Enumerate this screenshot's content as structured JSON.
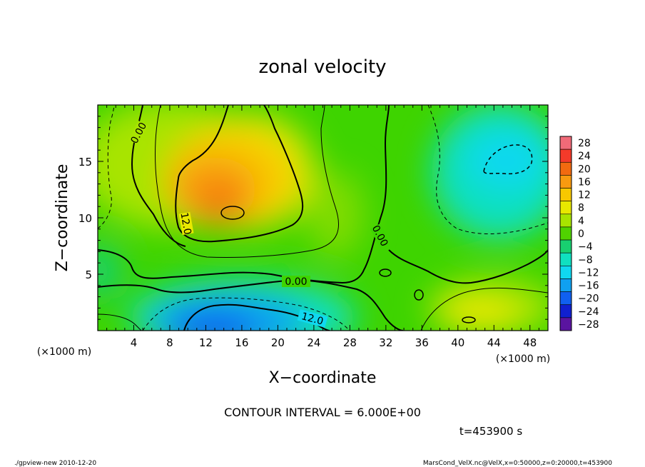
{
  "chart_data": {
    "type": "heatmap",
    "title": "zonal velocity",
    "xlabel": "X−coordinate",
    "ylabel": "Z−coordinate",
    "x_unit_left": "(×1000 m)",
    "x_unit_right": "(×1000 m)",
    "xlim": [
      0,
      50
    ],
    "ylim": [
      0,
      20
    ],
    "x_ticks": [
      4,
      8,
      12,
      16,
      20,
      24,
      28,
      32,
      36,
      40,
      44,
      48
    ],
    "y_ticks": [
      5,
      10,
      15
    ],
    "colorbar": {
      "levels": [
        28,
        24,
        20,
        16,
        12,
        8,
        4,
        0,
        -4,
        -8,
        -12,
        -16,
        -20,
        -24,
        -28
      ],
      "labels": [
        "28",
        "24",
        "20",
        "16",
        "12",
        "8",
        "4",
        "0",
        "−4",
        "−8",
        "−12",
        "−16",
        "−20",
        "−24",
        "−28"
      ],
      "colors": [
        "#f06a78",
        "#f43a2a",
        "#f26a10",
        "#f89a10",
        "#f8c800",
        "#e8e800",
        "#a8e400",
        "#50d200",
        "#18d070",
        "#10e0c0",
        "#10d8f0",
        "#10a0f0",
        "#1060f0",
        "#1020d0",
        "#5a14a0"
      ]
    },
    "contour_labels": [
      "0.00",
      "12.0",
      "0.00",
      "12.0",
      "0.00"
    ],
    "contour_interval_text": "CONTOUR INTERVAL = 6.000E+00",
    "time_text": "t=453900 s",
    "features": [
      {
        "x": 15,
        "y": 12,
        "value": 18,
        "note": "positive maximum"
      },
      {
        "x": 17,
        "y": 1,
        "value": -16,
        "note": "negative minimum"
      },
      {
        "x": 46,
        "y": 15,
        "value": -8,
        "note": "negative region"
      },
      {
        "x": 3,
        "y": 17,
        "value": 2
      },
      {
        "x": 30,
        "y": 15,
        "value": 0
      },
      {
        "x": 42,
        "y": 2,
        "value": 8
      }
    ]
  },
  "footer": {
    "left": "./gpview-new   2010-12-20",
    "right": "MarsCond_VelX.nc@VelX,x=0:50000,z=0:20000,t=453900"
  }
}
